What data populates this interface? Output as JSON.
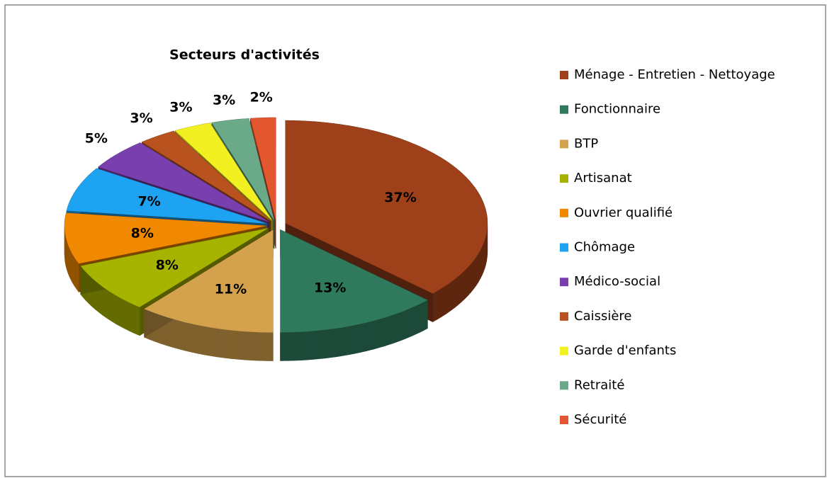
{
  "chart_data": {
    "type": "pie",
    "title": "Secteurs d'activités",
    "categories": [
      "Ménage - Entretien - Nettoyage",
      "Fonctionnaire",
      "BTP",
      "Artisanat",
      "Ouvrier qualifié",
      "Chômage",
      "Médico-social",
      "Caissière",
      "Garde d'enfants",
      "Retraité",
      "Sécurité"
    ],
    "values": [
      37,
      13,
      11,
      8,
      8,
      7,
      5,
      3,
      3,
      3,
      2
    ],
    "value_labels": [
      "37%",
      "13%",
      "11%",
      "8%",
      "8%",
      "7%",
      "5%",
      "3%",
      "3%",
      "3%",
      "2%"
    ],
    "colors": [
      "#9e4019",
      "#2f7a5d",
      "#d4a24c",
      "#a6b300",
      "#f08800",
      "#1ea3f2",
      "#7a3fae",
      "#b8531f",
      "#f2f020",
      "#6aaa88",
      "#e2572f"
    ],
    "legend": "right"
  }
}
